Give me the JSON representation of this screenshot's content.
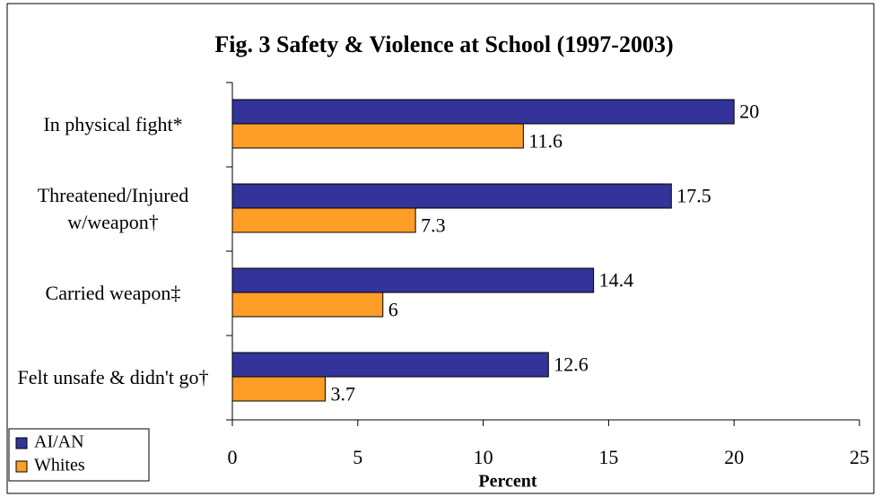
{
  "chart_data": {
    "type": "bar",
    "orientation": "horizontal",
    "title": "Fig. 3 Safety & Violence at School (1997-2003)",
    "x_label": "Percent",
    "categories": [
      "In physical fight*",
      "Threatened/Injured w/weapon†",
      "Carried weapon‡",
      "Felt unsafe & didn't go†"
    ],
    "series": [
      {
        "name": "AI/AN",
        "color": "#333399",
        "values": [
          20,
          17.5,
          14.4,
          12.6
        ]
      },
      {
        "name": "Whites",
        "color": "#ff9e26",
        "values": [
          11.6,
          7.3,
          6,
          3.7
        ]
      }
    ],
    "xlim": [
      0,
      25
    ],
    "xticks": [
      0,
      5,
      10,
      15,
      20,
      25
    ],
    "legend": "bottom-left"
  }
}
